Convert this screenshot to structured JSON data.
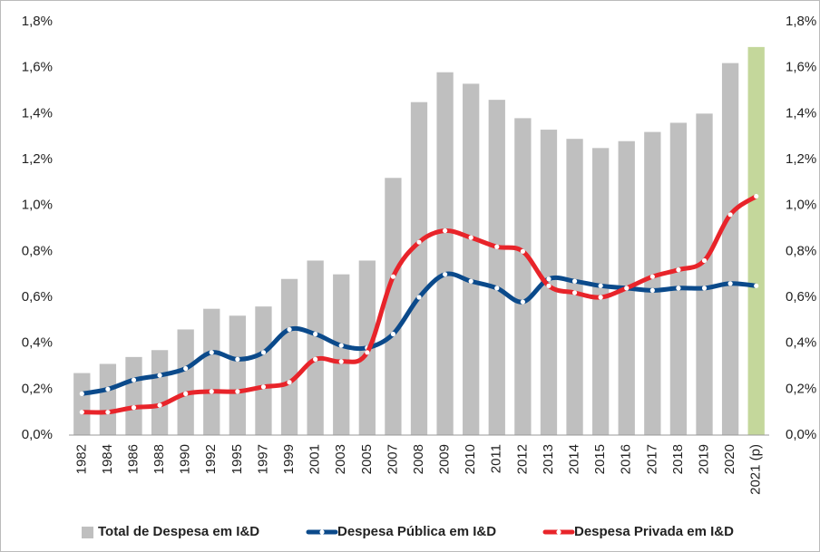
{
  "chart_data": {
    "type": "bar_line",
    "categories": [
      "1982",
      "1984",
      "1986",
      "1988",
      "1990",
      "1992",
      "1995",
      "1997",
      "1999",
      "2001",
      "2003",
      "2005",
      "2007",
      "2008",
      "2009",
      "2010",
      "2011",
      "2012",
      "2013",
      "2014",
      "2015",
      "2016",
      "2017",
      "2018",
      "2019",
      "2020",
      "2021 (p)"
    ],
    "series": [
      {
        "name": "Total de Despesa em I&D",
        "type": "bar",
        "color": "#bfbfbf",
        "colors": [
          "#bfbfbf",
          "#bfbfbf",
          "#bfbfbf",
          "#bfbfbf",
          "#bfbfbf",
          "#bfbfbf",
          "#bfbfbf",
          "#bfbfbf",
          "#bfbfbf",
          "#bfbfbf",
          "#bfbfbf",
          "#bfbfbf",
          "#bfbfbf",
          "#bfbfbf",
          "#bfbfbf",
          "#bfbfbf",
          "#bfbfbf",
          "#bfbfbf",
          "#bfbfbf",
          "#bfbfbf",
          "#bfbfbf",
          "#bfbfbf",
          "#bfbfbf",
          "#bfbfbf",
          "#bfbfbf",
          "#bfbfbf",
          "#c4d79b"
        ],
        "values": [
          0.27,
          0.31,
          0.34,
          0.37,
          0.46,
          0.55,
          0.52,
          0.56,
          0.68,
          0.76,
          0.7,
          0.76,
          1.12,
          1.45,
          1.58,
          1.53,
          1.46,
          1.38,
          1.33,
          1.29,
          1.25,
          1.28,
          1.32,
          1.36,
          1.4,
          1.62,
          1.69
        ]
      },
      {
        "name": "Despesa Pública em I&D",
        "type": "line",
        "color": "#0b4a8b",
        "values": [
          0.18,
          0.2,
          0.24,
          0.26,
          0.29,
          0.36,
          0.33,
          0.36,
          0.46,
          0.44,
          0.39,
          0.38,
          0.44,
          0.6,
          0.7,
          0.67,
          0.64,
          0.58,
          0.68,
          0.67,
          0.65,
          0.64,
          0.63,
          0.64,
          0.64,
          0.66,
          0.65
        ]
      },
      {
        "name": "Despesa Privada em I&D",
        "type": "line",
        "color": "#e8242a",
        "values": [
          0.1,
          0.1,
          0.12,
          0.13,
          0.18,
          0.19,
          0.19,
          0.21,
          0.23,
          0.33,
          0.32,
          0.36,
          0.69,
          0.84,
          0.89,
          0.86,
          0.82,
          0.8,
          0.65,
          0.62,
          0.6,
          0.64,
          0.69,
          0.72,
          0.76,
          0.96,
          1.04
        ]
      }
    ],
    "ylim": [
      0,
      1.8
    ],
    "yticks": [
      {
        "value": 0,
        "label": "0,0%"
      },
      {
        "value": 0.2,
        "label": "0,2%"
      },
      {
        "value": 0.4,
        "label": "0,4%"
      },
      {
        "value": 0.6,
        "label": "0,6%"
      },
      {
        "value": 0.8,
        "label": "0,8%"
      },
      {
        "value": 1.0,
        "label": "1,0%"
      },
      {
        "value": 1.2,
        "label": "1,2%"
      },
      {
        "value": 1.4,
        "label": "1,4%"
      },
      {
        "value": 1.6,
        "label": "1,6%"
      },
      {
        "value": 1.8,
        "label": "1,8%"
      }
    ],
    "y2lim": [
      0,
      1.8
    ],
    "y2ticks": [
      {
        "value": 0,
        "label": "0,0%"
      },
      {
        "value": 0.2,
        "label": "0,2%"
      },
      {
        "value": 0.4,
        "label": "0,4%"
      },
      {
        "value": 0.6,
        "label": "0,6%"
      },
      {
        "value": 0.8,
        "label": "0,8%"
      },
      {
        "value": 1.0,
        "label": "1,0%"
      },
      {
        "value": 1.2,
        "label": "1,2%"
      },
      {
        "value": 1.4,
        "label": "1,4%"
      },
      {
        "value": 1.6,
        "label": "1,6%"
      },
      {
        "value": 1.8,
        "label": "1,8%"
      }
    ],
    "legend": "bottom"
  }
}
